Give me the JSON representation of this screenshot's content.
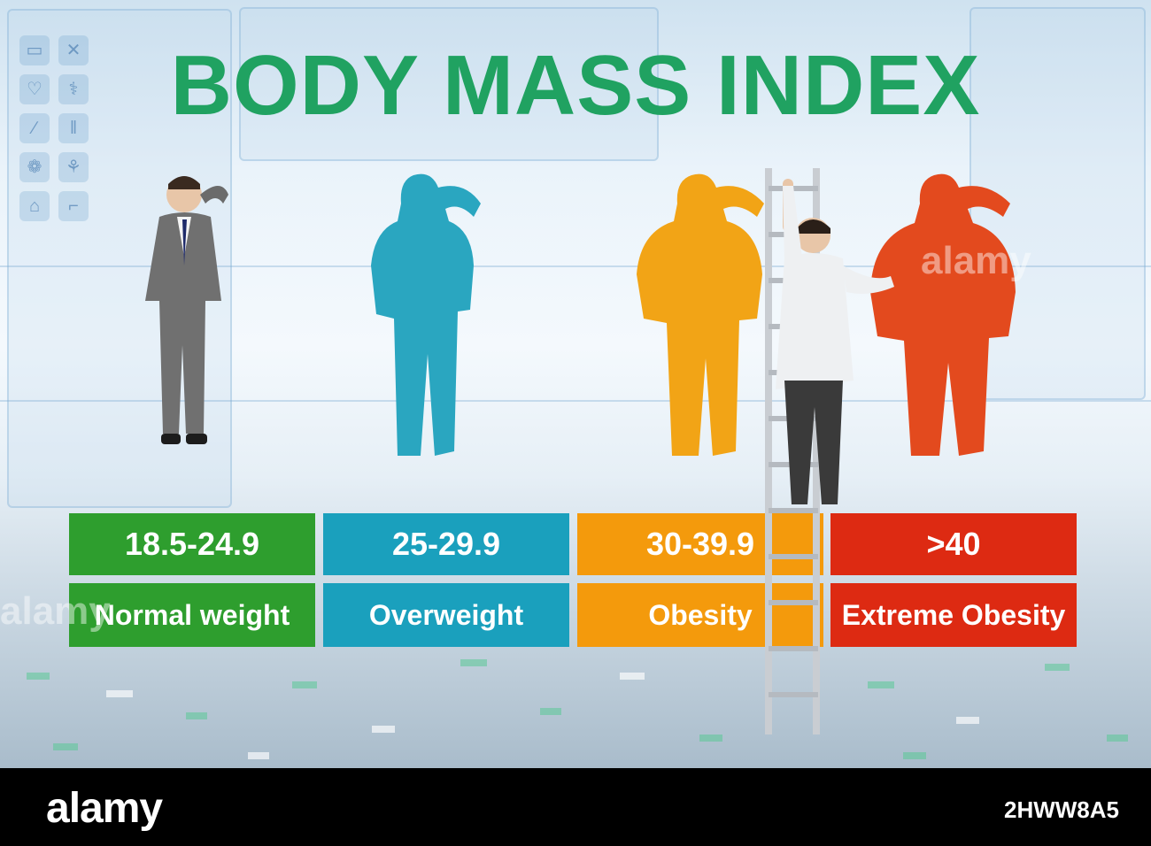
{
  "title": "BODY MASS INDEX",
  "categories": [
    {
      "range": "18.5-24.9",
      "label": "Normal weight",
      "color": "#2e9e2e"
    },
    {
      "range": "25-29.9",
      "label": "Overweight",
      "color": "#1aa0bd"
    },
    {
      "range": "30-39.9",
      "label": "Obesity",
      "color": "#f49a0c"
    },
    {
      "range": ">40",
      "label": "Extreme Obesity",
      "color": "#dd2a12"
    }
  ],
  "silhouette_colors": [
    "#2aa6c0",
    "#f2a416",
    "#e34a1e"
  ],
  "footer": {
    "logo": "alamy",
    "image_id": "2HWW8A5"
  }
}
